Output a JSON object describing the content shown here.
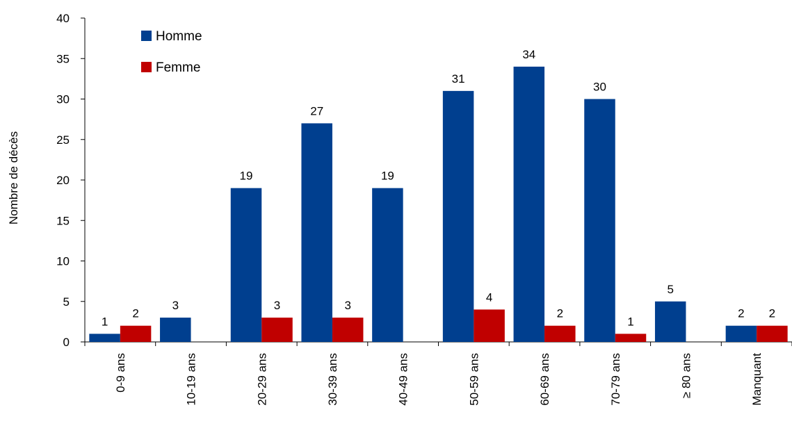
{
  "chart_data": {
    "type": "bar",
    "title": "",
    "xlabel": "",
    "ylabel": "Nombre de décès",
    "ylim": [
      0,
      40
    ],
    "yticks": [
      0,
      5,
      10,
      15,
      20,
      25,
      30,
      35,
      40
    ],
    "grid": false,
    "legend": {
      "placement": "top-left"
    },
    "categories": [
      "0-9 ans",
      "10-19 ans",
      "20-29 ans",
      "30-39 ans",
      "40-49 ans",
      "50-59 ans",
      "60-69 ans",
      "70-79 ans",
      "≥ 80 ans",
      "Manquant"
    ],
    "series": [
      {
        "name": "Homme",
        "color": "#003f8f",
        "values": [
          1,
          3,
          19,
          27,
          19,
          31,
          34,
          30,
          5,
          2
        ]
      },
      {
        "name": "Femme",
        "color": "#c00000",
        "values": [
          2,
          0,
          3,
          3,
          0,
          4,
          2,
          1,
          0,
          2
        ]
      }
    ]
  }
}
